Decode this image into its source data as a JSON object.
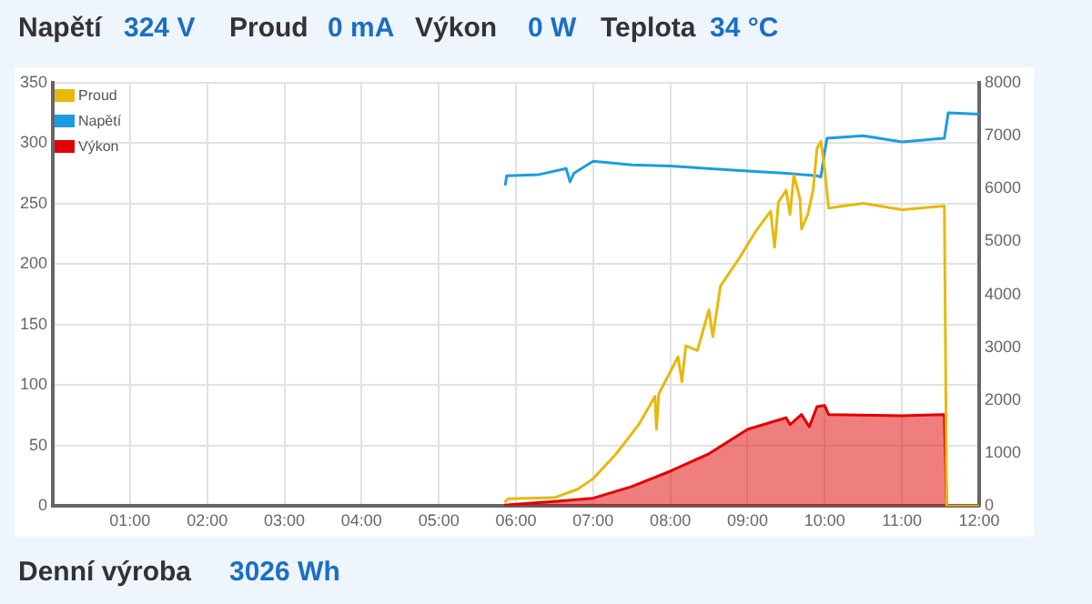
{
  "chart_data": {
    "type": "line",
    "annotations": [
      "Napětí",
      "324 V",
      "Proud",
      "0 mA",
      "Výkon",
      "0 W",
      "Teplota",
      "34 °C",
      "Denní výroba",
      "3026 Wh"
    ],
    "xlim": [
      0,
      12
    ],
    "xticks": [
      {
        "value": 1,
        "label": "01:00"
      },
      {
        "value": 2,
        "label": "02:00"
      },
      {
        "value": 3,
        "label": "03:00"
      },
      {
        "value": 4,
        "label": "04:00"
      },
      {
        "value": 5,
        "label": "05:00"
      },
      {
        "value": 6,
        "label": "06:00"
      },
      {
        "value": 7,
        "label": "07:00"
      },
      {
        "value": 8,
        "label": "08:00"
      },
      {
        "value": 9,
        "label": "09:00"
      },
      {
        "value": 10,
        "label": "10:00"
      },
      {
        "value": 11,
        "label": "11:00"
      },
      {
        "value": 12,
        "label": "12:00"
      }
    ],
    "ylim": [
      0,
      350
    ],
    "yticks": [
      0,
      50,
      100,
      150,
      200,
      250,
      300,
      350
    ],
    "y2lim": [
      0,
      8000
    ],
    "y2ticks": [
      0,
      1000,
      2000,
      3000,
      4000,
      5000,
      6000,
      7000,
      8000
    ],
    "grid": true,
    "legend": "top left",
    "marker": "none",
    "series": [
      {
        "name": "Proud",
        "color": "#e8b90c",
        "axis": "y2",
        "x": [
          5.85,
          5.9,
          6.5,
          6.8,
          7.0,
          7.3,
          7.6,
          7.8,
          7.82,
          7.85,
          8.1,
          8.15,
          8.2,
          8.35,
          8.5,
          8.55,
          8.65,
          8.9,
          9.1,
          9.3,
          9.35,
          9.4,
          9.5,
          9.55,
          9.6,
          9.68,
          9.7,
          9.78,
          9.85,
          9.9,
          9.95,
          10.0,
          10.05,
          10.5,
          11.0,
          11.55,
          11.58,
          12.0
        ],
        "values": [
          70,
          140,
          160,
          320,
          520,
          990,
          1560,
          2070,
          1450,
          2120,
          2820,
          2350,
          3030,
          2940,
          3710,
          3200,
          4160,
          4700,
          5180,
          5570,
          4890,
          5740,
          5970,
          5510,
          6250,
          5800,
          5230,
          5510,
          5970,
          6760,
          6890,
          6360,
          5630,
          5720,
          5600,
          5670,
          0,
          0
        ]
      },
      {
        "name": "Napětí",
        "color": "#1e9be0",
        "x": [
          5.86,
          5.88,
          6.3,
          6.65,
          6.7,
          6.75,
          7.0,
          7.5,
          8.0,
          9.0,
          9.5,
          9.9,
          9.95,
          10.0,
          10.03,
          10.5,
          11.0,
          11.55,
          11.6,
          12.0
        ],
        "values": [
          265,
          273,
          274,
          279,
          268,
          275,
          285,
          282,
          281,
          277,
          275,
          273,
          272,
          293,
          304,
          306,
          301,
          304,
          325,
          324
        ]
      },
      {
        "name": "Výkon",
        "type": "area",
        "color": "#e00000",
        "axis": "y2",
        "x": [
          5.85,
          6.5,
          7.0,
          7.5,
          8.0,
          8.5,
          9.0,
          9.5,
          9.55,
          9.7,
          9.8,
          9.9,
          10.0,
          10.05,
          11.0,
          11.55,
          11.58,
          12.0
        ],
        "values": [
          20,
          90,
          150,
          370,
          660,
          990,
          1450,
          1670,
          1540,
          1730,
          1500,
          1880,
          1900,
          1730,
          1710,
          1730,
          0,
          0
        ]
      }
    ]
  }
}
